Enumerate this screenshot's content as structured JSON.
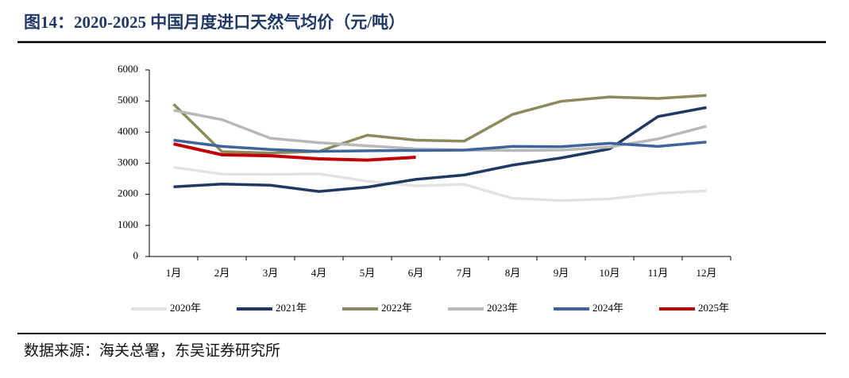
{
  "chart_data": {
    "type": "line",
    "title": "图14：2020-2025 中国月度进口天然气均价（元/吨）",
    "source": "数据来源：海关总署，东吴证券研究所",
    "categories": [
      "1月",
      "2月",
      "3月",
      "4月",
      "5月",
      "6月",
      "7月",
      "8月",
      "9月",
      "10月",
      "11月",
      "12月"
    ],
    "series": [
      {
        "name": "2020年",
        "color": "#e3e3e3",
        "values": [
          2870,
          2650,
          2640,
          2660,
          2420,
          2270,
          2320,
          1870,
          1800,
          1850,
          2030,
          2110
        ]
      },
      {
        "name": "2021年",
        "color": "#1f3864",
        "values": [
          2240,
          2330,
          2290,
          2090,
          2230,
          2480,
          2620,
          2940,
          3170,
          3460,
          4500,
          4790
        ]
      },
      {
        "name": "2022年",
        "color": "#8c8a5c",
        "values": [
          4900,
          3370,
          3330,
          3380,
          3900,
          3740,
          3710,
          4570,
          4990,
          5130,
          5080,
          5180
        ]
      },
      {
        "name": "2023年",
        "color": "#b8b8b8",
        "values": [
          4700,
          4400,
          3800,
          3660,
          3560,
          3460,
          3420,
          3410,
          3420,
          3520,
          3780,
          4190
        ]
      },
      {
        "name": "2024年",
        "color": "#3f6499",
        "values": [
          3740,
          3540,
          3440,
          3380,
          3400,
          3410,
          3420,
          3540,
          3530,
          3640,
          3540,
          3680
        ]
      },
      {
        "name": "2025年",
        "color": "#c00000",
        "values": [
          3620,
          3270,
          3240,
          3140,
          3100,
          3190,
          null,
          null,
          null,
          null,
          null,
          null
        ]
      }
    ],
    "ylim": [
      0,
      6000
    ],
    "yticks": [
      0,
      1000,
      2000,
      3000,
      4000,
      5000,
      6000
    ],
    "legend": "bottom"
  }
}
